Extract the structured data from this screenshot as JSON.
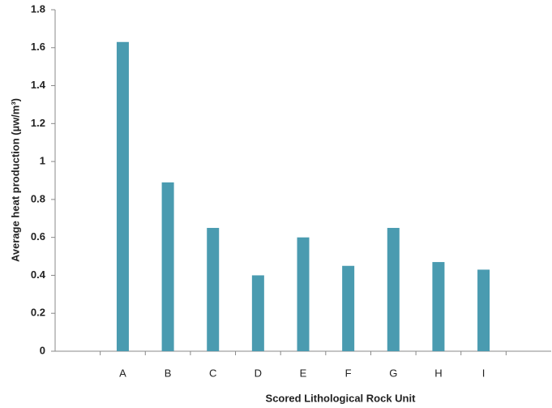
{
  "chart_data": {
    "type": "bar",
    "x_label": "Scored Lithological Rock Unit",
    "y_label": "Average heat production (µw/m³)",
    "categories": [
      null,
      "A",
      "B",
      "C",
      "D",
      "E",
      "F",
      "G",
      "H",
      "I",
      null
    ],
    "values": [
      null,
      1.63,
      0.89,
      0.65,
      0.4,
      0.6,
      0.45,
      0.65,
      0.47,
      0.43,
      null
    ],
    "color": "#4a9bb0",
    "ylim": [
      0,
      1.8
    ],
    "yticks": [
      0,
      0.2,
      0.4,
      0.6,
      0.8,
      1,
      1.2,
      1.4,
      1.6,
      1.8
    ],
    "grid": false
  }
}
